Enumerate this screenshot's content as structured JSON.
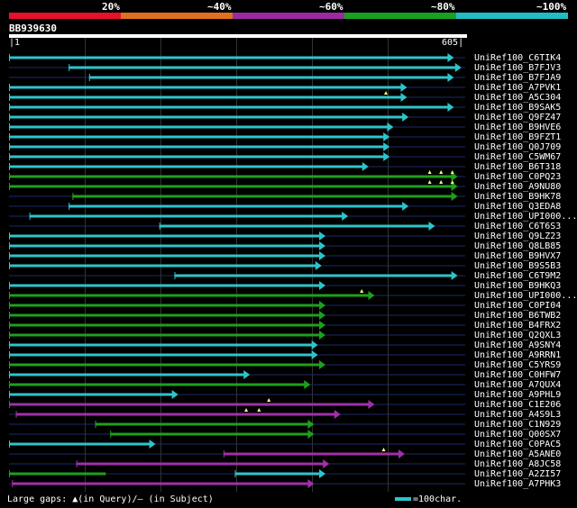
{
  "identity_bands": [
    {
      "label": "20%",
      "color": "#e8102a"
    },
    {
      "label": "~40%",
      "color": "#e07020"
    },
    {
      "label": "~60%",
      "color": "#9a2aa0"
    },
    {
      "label": "~80%",
      "color": "#1aa020"
    },
    {
      "label": "~100%",
      "color": "#22bcc4"
    }
  ],
  "query": {
    "id": "BB939630",
    "start": "1",
    "end": "605"
  },
  "colors": {
    "cyan": "#2ec4cc",
    "green": "#1ea01e",
    "purple": "#a030a8",
    "gap": "#1c2a6a",
    "gap_marker": "#ffff80"
  },
  "hits": [
    {
      "name": "UniRef100_C6TIK4",
      "segments": [
        {
          "start": 1,
          "end": 590,
          "color": "cyan"
        }
      ],
      "arrow": true
    },
    {
      "name": "UniRef100_B7FJV3",
      "segments": [
        {
          "start": 80,
          "end": 600,
          "color": "cyan"
        }
      ],
      "arrow": true
    },
    {
      "name": "UniRef100_B7FJA9",
      "segments": [
        {
          "start": 107,
          "end": 590,
          "color": "cyan"
        }
      ],
      "arrow": true
    },
    {
      "name": "UniRef100_A7PVK1",
      "segments": [
        {
          "start": 1,
          "end": 528,
          "color": "cyan"
        }
      ],
      "arrow": true
    },
    {
      "name": "UniRef100_A5C304",
      "segments": [
        {
          "start": 1,
          "end": 528,
          "color": "cyan"
        }
      ],
      "arrow": true,
      "markers": [
        500
      ]
    },
    {
      "name": "UniRef100_B9SAK5",
      "segments": [
        {
          "start": 1,
          "end": 590,
          "color": "cyan"
        }
      ],
      "arrow": true
    },
    {
      "name": "UniRef100_Q9FZ47",
      "segments": [
        {
          "start": 1,
          "end": 530,
          "color": "cyan"
        }
      ],
      "arrow": true
    },
    {
      "name": "UniRef100_B9HVE6",
      "segments": [
        {
          "start": 1,
          "end": 510,
          "color": "cyan"
        }
      ],
      "arrow": true
    },
    {
      "name": "UniRef100_B9FZT1",
      "segments": [
        {
          "start": 1,
          "end": 505,
          "color": "cyan"
        }
      ],
      "arrow": true
    },
    {
      "name": "UniRef100_Q0J709",
      "segments": [
        {
          "start": 1,
          "end": 505,
          "color": "cyan"
        }
      ],
      "arrow": true
    },
    {
      "name": "UniRef100_C5WM67",
      "segments": [
        {
          "start": 1,
          "end": 505,
          "color": "cyan"
        }
      ],
      "arrow": true
    },
    {
      "name": "UniRef100_B6T318",
      "segments": [
        {
          "start": 1,
          "end": 477,
          "color": "cyan"
        }
      ],
      "arrow": true
    },
    {
      "name": "UniRef100_C0PQ23",
      "segments": [
        {
          "start": 1,
          "end": 595,
          "color": "green"
        }
      ],
      "arrow": true,
      "markers": [
        558,
        573,
        588
      ]
    },
    {
      "name": "UniRef100_A9NU80",
      "segments": [
        {
          "start": 1,
          "end": 595,
          "color": "green"
        }
      ],
      "arrow": true,
      "markers": [
        558,
        573,
        588
      ]
    },
    {
      "name": "UniRef100_B9HK78",
      "segments": [
        {
          "start": 85,
          "end": 595,
          "color": "green"
        }
      ],
      "arrow": true
    },
    {
      "name": "UniRef100_Q3EDA8",
      "segments": [
        {
          "start": 80,
          "end": 530,
          "color": "cyan"
        }
      ],
      "arrow": true
    },
    {
      "name": "UniRef100_UPI000...",
      "segments": [
        {
          "start": 28,
          "end": 450,
          "color": "cyan"
        }
      ],
      "arrow": true
    },
    {
      "name": "UniRef100_C6T6S3",
      "segments": [
        {
          "start": 200,
          "end": 565,
          "color": "cyan"
        }
      ],
      "arrow": true
    },
    {
      "name": "UniRef100_Q9LZ23",
      "segments": [
        {
          "start": 1,
          "end": 420,
          "color": "cyan"
        }
      ],
      "arrow": true
    },
    {
      "name": "UniRef100_Q8LB85",
      "segments": [
        {
          "start": 1,
          "end": 420,
          "color": "cyan"
        }
      ],
      "arrow": true
    },
    {
      "name": "UniRef100_B9HVX7",
      "segments": [
        {
          "start": 1,
          "end": 420,
          "color": "cyan"
        }
      ],
      "arrow": true
    },
    {
      "name": "UniRef100_B9S5B3",
      "segments": [
        {
          "start": 1,
          "end": 415,
          "color": "cyan"
        }
      ],
      "arrow": true
    },
    {
      "name": "UniRef100_C6T9M2",
      "segments": [
        {
          "start": 220,
          "end": 595,
          "color": "cyan"
        }
      ],
      "arrow": true
    },
    {
      "name": "UniRef100_B9HKQ3",
      "segments": [
        {
          "start": 1,
          "end": 420,
          "color": "cyan"
        }
      ],
      "arrow": true
    },
    {
      "name": "UniRef100_UPI000...",
      "segments": [
        {
          "start": 1,
          "end": 485,
          "color": "green"
        }
      ],
      "arrow": true,
      "markers": [
        468
      ]
    },
    {
      "name": "UniRef100_C0PI04",
      "segments": [
        {
          "start": 1,
          "end": 420,
          "color": "green"
        }
      ],
      "arrow": true
    },
    {
      "name": "UniRef100_B6TWB2",
      "segments": [
        {
          "start": 1,
          "end": 420,
          "color": "green"
        }
      ],
      "arrow": true
    },
    {
      "name": "UniRef100_B4FRX2",
      "segments": [
        {
          "start": 1,
          "end": 420,
          "color": "green"
        }
      ],
      "arrow": true
    },
    {
      "name": "UniRef100_Q2QXL3",
      "segments": [
        {
          "start": 1,
          "end": 420,
          "color": "green"
        }
      ],
      "arrow": true
    },
    {
      "name": "UniRef100_A9SNY4",
      "segments": [
        {
          "start": 1,
          "end": 410,
          "color": "cyan"
        }
      ],
      "arrow": true
    },
    {
      "name": "UniRef100_A9RRN1",
      "segments": [
        {
          "start": 1,
          "end": 410,
          "color": "cyan"
        }
      ],
      "arrow": true
    },
    {
      "name": "UniRef100_C5YRS9",
      "segments": [
        {
          "start": 1,
          "end": 420,
          "color": "green"
        }
      ],
      "arrow": true
    },
    {
      "name": "UniRef100_C0HFW7",
      "segments": [
        {
          "start": 1,
          "end": 320,
          "color": "cyan"
        }
      ],
      "arrow": true
    },
    {
      "name": "UniRef100_A7QUX4",
      "segments": [
        {
          "start": 1,
          "end": 400,
          "color": "green"
        }
      ],
      "arrow": true
    },
    {
      "name": "UniRef100_A9PHL9",
      "segments": [
        {
          "start": 1,
          "end": 225,
          "color": "cyan"
        }
      ],
      "arrow": true
    },
    {
      "name": "UniRef100_C1E206",
      "segments": [
        {
          "start": 1,
          "end": 485,
          "color": "purple"
        }
      ],
      "arrow": true,
      "markers": [
        345
      ]
    },
    {
      "name": "UniRef100_A4S9L3",
      "segments": [
        {
          "start": 10,
          "end": 440,
          "color": "purple"
        }
      ],
      "arrow": true,
      "markers": [
        315,
        332
      ]
    },
    {
      "name": "UniRef100_C1N929",
      "segments": [
        {
          "start": 115,
          "end": 405,
          "color": "green"
        }
      ],
      "arrow": true
    },
    {
      "name": "UniRef100_Q00SX7",
      "segments": [
        {
          "start": 135,
          "end": 405,
          "color": "green"
        }
      ],
      "arrow": true
    },
    {
      "name": "UniRef100_C0PAC5",
      "segments": [
        {
          "start": 1,
          "end": 195,
          "color": "cyan"
        }
      ],
      "arrow": true
    },
    {
      "name": "UniRef100_A5ANE0",
      "segments": [
        {
          "start": 285,
          "end": 525,
          "color": "purple"
        }
      ],
      "arrow": true,
      "markers": [
        497
      ]
    },
    {
      "name": "UniRef100_A8JC58",
      "segments": [
        {
          "start": 90,
          "end": 425,
          "color": "purple"
        }
      ],
      "arrow": true
    },
    {
      "name": "UniRef100_A2ZI57",
      "segments": [
        {
          "start": 1,
          "end": 135,
          "color": "green"
        },
        {
          "start": 300,
          "end": 420,
          "color": "cyan"
        }
      ],
      "arrow": true
    },
    {
      "name": "UniRef100_A7PHK3",
      "segments": [
        {
          "start": 5,
          "end": 405,
          "color": "purple"
        }
      ],
      "arrow": true
    }
  ],
  "footer": {
    "legend_text": "Large gaps: ▲(in Query)/— (in Subject)",
    "scale_text": "=100char."
  }
}
